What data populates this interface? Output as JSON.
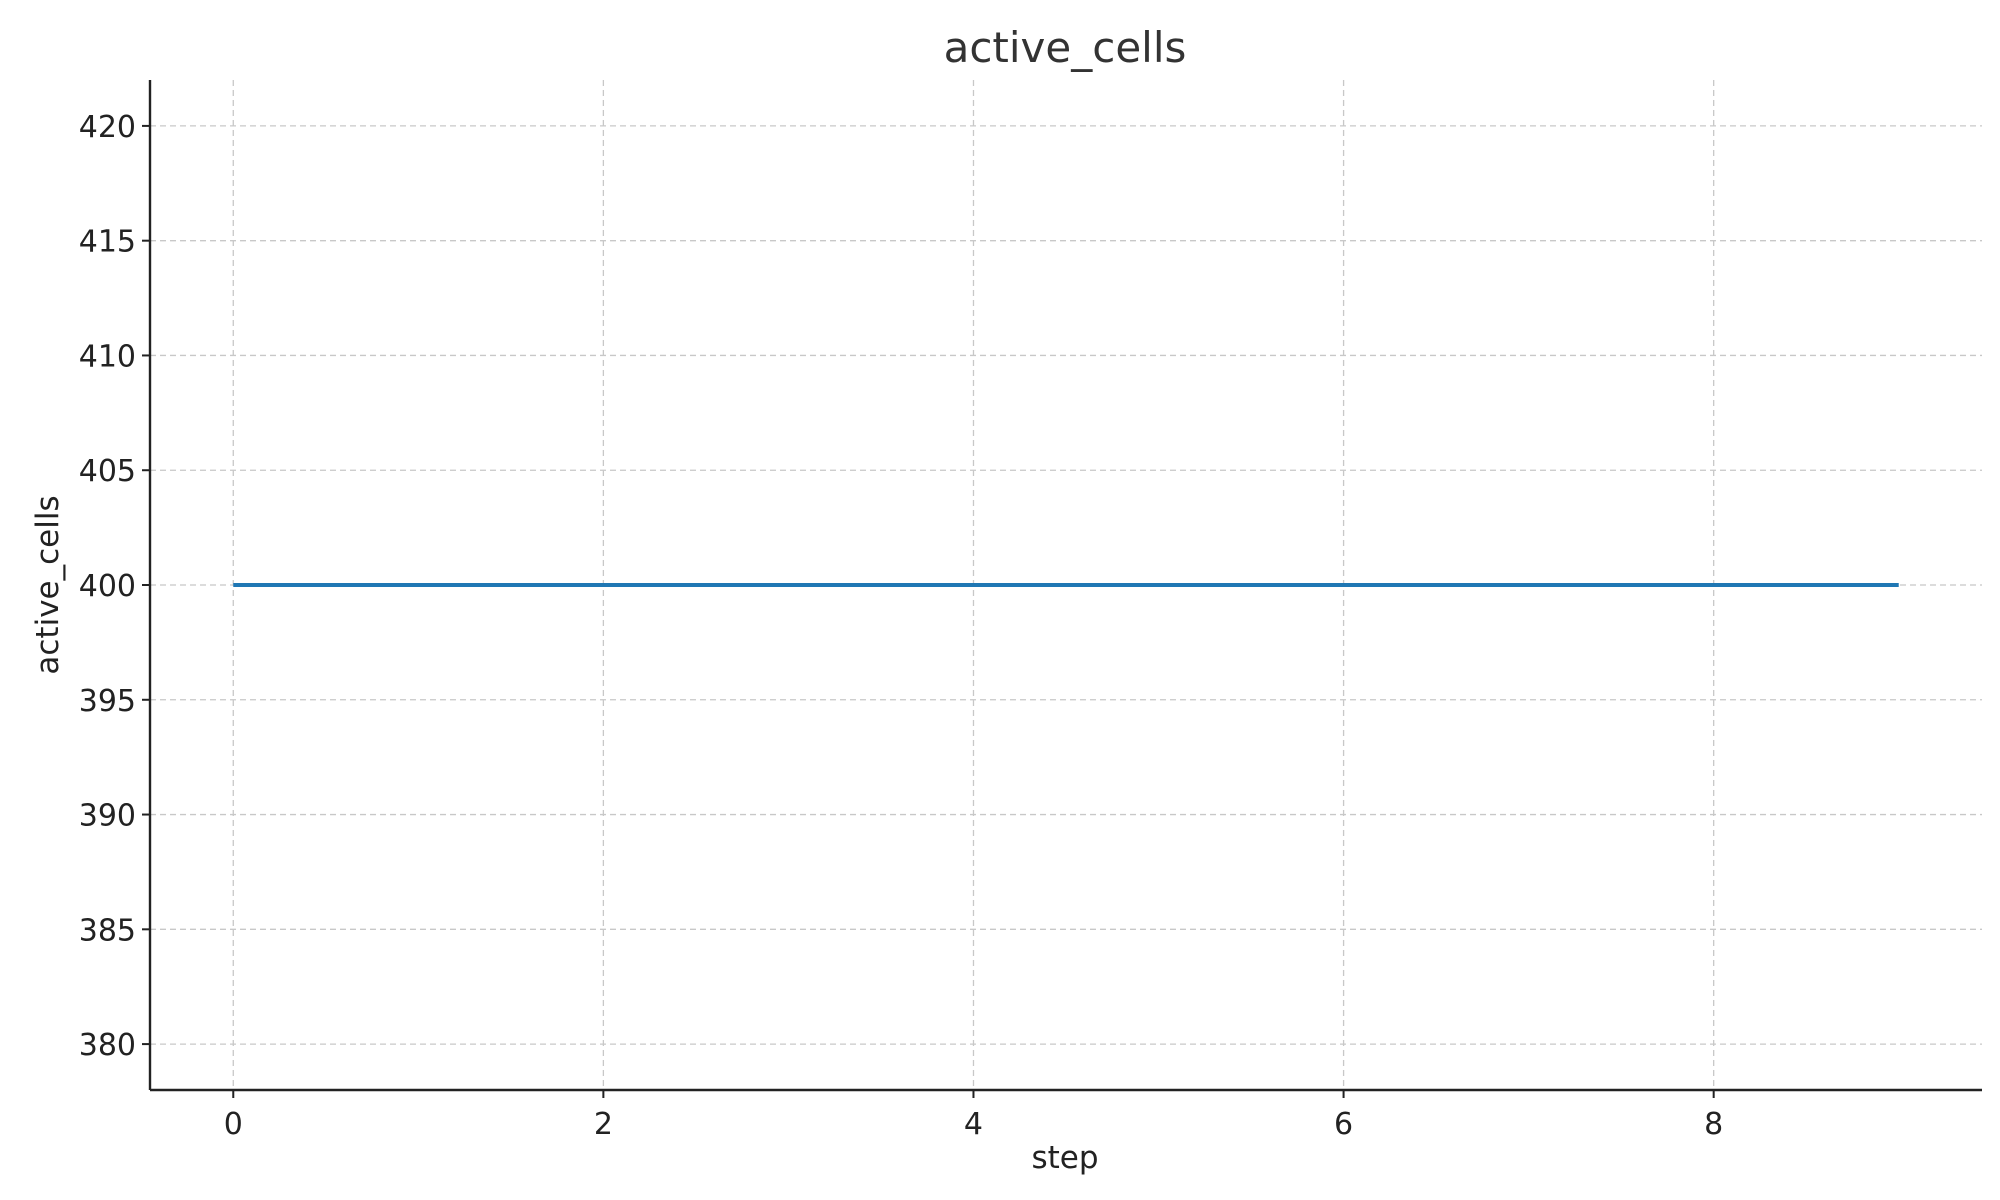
{
  "chart_data": {
    "type": "line",
    "title": "active_cells",
    "xlabel": "step",
    "ylabel": "active_cells",
    "xlim": [
      -0.45,
      9.45
    ],
    "ylim": [
      378,
      422
    ],
    "xticks": [
      0,
      2,
      4,
      6,
      8
    ],
    "yticks": [
      380,
      385,
      390,
      395,
      400,
      405,
      410,
      415,
      420
    ],
    "grid": true,
    "legend": "none",
    "series": [
      {
        "color": "#1f77b4",
        "x": [
          0,
          1,
          2,
          3,
          4,
          5,
          6,
          7,
          8,
          9
        ],
        "y": [
          400,
          400,
          400,
          400,
          400,
          400,
          400,
          400,
          400,
          400
        ]
      }
    ]
  }
}
